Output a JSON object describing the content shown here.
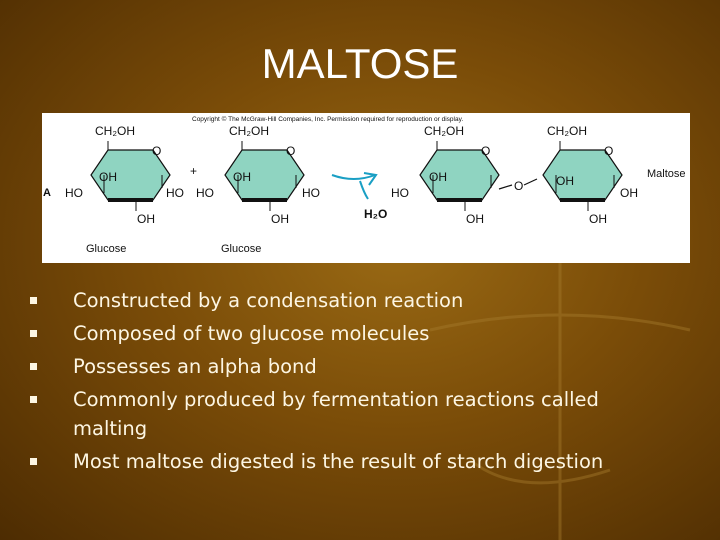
{
  "title": "MALTOSE",
  "figure": {
    "copyright": "Copyright © The McGraw-Hill Companies, Inc. Permission required for reproduction or display.",
    "panel_label": "A",
    "plus": "+",
    "water": "H₂O",
    "product_label": "Maltose",
    "bridge_oxygen": "O",
    "reactant_labels": [
      "Glucose",
      "Glucose"
    ],
    "rings": [
      [
        "CH₂OH",
        "O",
        "HO",
        "OH",
        "HO",
        "OH"
      ],
      [
        "CH₂OH",
        "O",
        "HO",
        "OH",
        "HO",
        "OH"
      ],
      [
        "CH₂OH",
        "O",
        "HO",
        "OH",
        "OH"
      ],
      [
        "CH₂OH",
        "O",
        "OH",
        "OH",
        "OH"
      ]
    ]
  },
  "bullets": [
    "Constructed by a condensation reaction",
    "Composed of two glucose molecules",
    "Possesses an alpha bond",
    "Commonly produced by fermentation reactions called malting",
    "Most maltose digested is the result of starch digestion"
  ]
}
